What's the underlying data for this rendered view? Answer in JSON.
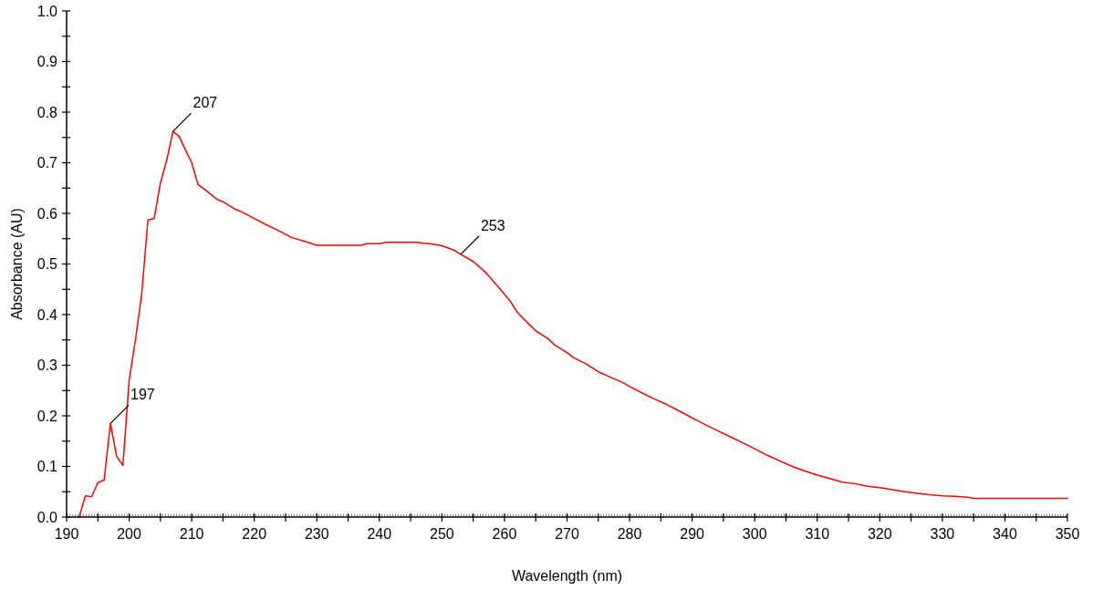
{
  "chart_data": {
    "type": "line",
    "xlabel": "Wavelength (nm)",
    "ylabel": "Absorbance (AU)",
    "xlim": [
      190,
      350
    ],
    "ylim": [
      0,
      1
    ],
    "xticks": [
      190,
      {
        "value": 195,
        "label": null
      },
      200,
      {
        "value": 205,
        "label": null
      },
      210,
      {
        "value": 215,
        "label": null
      },
      220,
      {
        "value": 225,
        "label": null
      },
      230,
      {
        "value": 235,
        "label": null
      },
      240,
      {
        "value": 245,
        "label": null
      },
      250,
      {
        "value": 255,
        "label": null
      },
      260,
      {
        "value": 265,
        "label": null
      },
      270,
      {
        "value": 275,
        "label": null
      },
      280,
      {
        "value": 285,
        "label": null
      },
      290,
      {
        "value": 295,
        "label": null
      },
      300,
      {
        "value": 305,
        "label": null
      },
      310,
      {
        "value": 315,
        "label": null
      },
      320,
      {
        "value": 325,
        "label": null
      },
      330,
      {
        "value": 335,
        "label": null
      },
      340,
      {
        "value": 345,
        "label": null
      },
      350
    ],
    "yticks": [
      {
        "value": 0,
        "label": "0.0"
      },
      {
        "value": 0.05,
        "label": null
      },
      0.1,
      {
        "value": 0.15,
        "label": null
      },
      0.2,
      {
        "value": 0.25,
        "label": null
      },
      0.3,
      {
        "value": 0.35,
        "label": null
      },
      0.4,
      {
        "value": 0.45,
        "label": null
      },
      0.5,
      {
        "value": 0.55,
        "label": null
      },
      0.6,
      {
        "value": 0.65,
        "label": null
      },
      0.7,
      {
        "value": 0.75,
        "label": null
      },
      0.8,
      {
        "value": 0.85,
        "label": null
      },
      0.9,
      {
        "value": 0.95,
        "label": null
      },
      {
        "value": 1,
        "label": "1.0"
      }
    ],
    "grid": false,
    "marker": "none",
    "line_style": "solid",
    "ref_lines": [
      {
        "axis": "y",
        "value": 0,
        "line_style": "dotted",
        "color": "#555555"
      }
    ],
    "annotations": [
      {
        "text": "197",
        "x": 197,
        "y": 0.185
      },
      {
        "text": "207",
        "x": 207,
        "y": 0.762
      },
      {
        "text": "253",
        "x": 253,
        "y": 0.519
      }
    ],
    "series": [
      {
        "color": "#ff0000",
        "x": [
          192,
          193,
          194,
          195,
          196,
          197,
          198,
          199,
          200,
          201,
          202,
          203,
          204,
          205,
          206,
          207,
          208,
          209,
          210,
          211,
          212,
          213,
          214,
          215,
          216,
          217,
          218,
          220,
          222,
          224,
          226,
          228,
          230,
          235,
          237,
          238,
          240,
          241,
          246,
          247,
          248,
          250,
          252,
          253,
          255,
          257,
          259,
          261,
          262,
          264,
          265,
          267,
          268,
          270,
          271,
          273,
          275,
          277,
          279,
          280,
          282,
          284,
          286,
          288,
          290,
          292,
          294,
          296,
          298,
          300,
          302,
          304,
          306,
          308,
          310,
          312,
          314,
          316,
          318,
          320,
          322,
          324,
          326,
          328,
          330,
          332,
          334,
          335,
          350
        ],
        "values": [
          0,
          0.042,
          0.04,
          0.068,
          0.073,
          0.185,
          0.12,
          0.102,
          0.27,
          0.35,
          0.44,
          0.587,
          0.59,
          0.66,
          0.705,
          0.762,
          0.752,
          0.725,
          0.7,
          0.657,
          0.648,
          0.638,
          0.628,
          0.623,
          0.615,
          0.608,
          0.603,
          0.59,
          0.577,
          0.565,
          0.552,
          0.545,
          0.537,
          0.537,
          0.537,
          0.54,
          0.54,
          0.543,
          0.543,
          0.541,
          0.54,
          0.536,
          0.527,
          0.519,
          0.505,
          0.483,
          0.455,
          0.425,
          0.405,
          0.38,
          0.368,
          0.352,
          0.34,
          0.325,
          0.315,
          0.303,
          0.287,
          0.276,
          0.265,
          0.258,
          0.245,
          0.233,
          0.222,
          0.209,
          0.196,
          0.183,
          0.171,
          0.159,
          0.147,
          0.135,
          0.122,
          0.111,
          0.1,
          0.091,
          0.083,
          0.076,
          0.069,
          0.066,
          0.061,
          0.058,
          0.054,
          0.05,
          0.047,
          0.044,
          0.042,
          0.041,
          0.039,
          0.037,
          0.037
        ]
      }
    ]
  }
}
